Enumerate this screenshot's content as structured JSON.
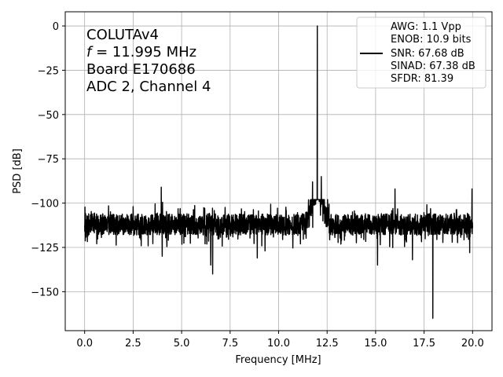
{
  "chart_data": {
    "type": "line",
    "xlabel": "Frequency [MHz]",
    "ylabel": "PSD [dB]",
    "xlim": [
      -1.0,
      21.0
    ],
    "ylim": [
      -172,
      8
    ],
    "xticks": [
      0.0,
      2.5,
      5.0,
      7.5,
      10.0,
      12.5,
      15.0,
      17.5,
      20.0
    ],
    "xtick_labels": [
      "0.0",
      "2.5",
      "5.0",
      "7.5",
      "10.0",
      "12.5",
      "15.0",
      "17.5",
      "20.0"
    ],
    "yticks": [
      0,
      -25,
      -50,
      -75,
      -100,
      -125,
      -150
    ],
    "ytick_labels": [
      "0",
      "−25",
      "−50",
      "−75",
      "−100",
      "−125",
      "−150"
    ],
    "grid": true,
    "annotation": {
      "line1": "COLUTAv4",
      "line2_symbol": "f",
      "line2_rest": " = 11.995 MHz",
      "line3": "Board E170686",
      "line4": "ADC 2, Channel 4"
    },
    "legend": {
      "placement": "top-right",
      "lines": [
        "AWG: 1.1 Vpp",
        "ENOB: 10.9 bits",
        "SNR: 67.68 dB",
        "SINAD: 67.38 dB",
        "SFDR: 81.39"
      ]
    },
    "series": [
      {
        "color": "#000000",
        "noise_floor_mean": -112,
        "noise_floor_band": [
          -123,
          -101
        ],
        "x_range": [
          0.0,
          20.0
        ],
        "peaks": [
          {
            "x": 0.05,
            "y": -106
          },
          {
            "x": 3.95,
            "y": -91
          },
          {
            "x": 11.995,
            "y": 0
          },
          {
            "x": 11.75,
            "y": -88
          },
          {
            "x": 12.2,
            "y": -85
          },
          {
            "x": 16.0,
            "y": -92
          },
          {
            "x": 19.97,
            "y": -92
          }
        ],
        "dips": [
          {
            "x": 6.6,
            "y": -140
          },
          {
            "x": 6.5,
            "y": -135
          },
          {
            "x": 4.0,
            "y": -130
          },
          {
            "x": 8.9,
            "y": -131
          },
          {
            "x": 9.3,
            "y": -127
          },
          {
            "x": 15.1,
            "y": -135
          },
          {
            "x": 16.9,
            "y": -132
          },
          {
            "x": 17.95,
            "y": -165
          },
          {
            "x": 19.85,
            "y": -128
          }
        ]
      }
    ]
  }
}
